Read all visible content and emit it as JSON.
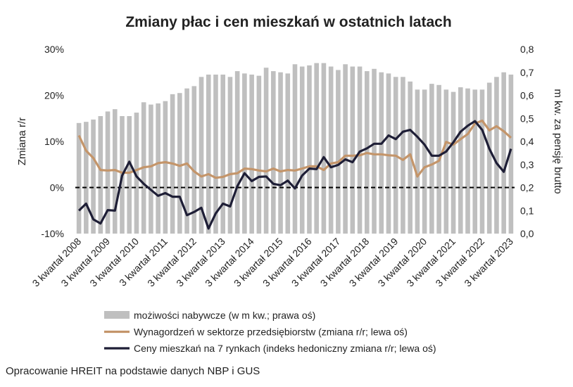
{
  "chart_data": {
    "type": "bar_line",
    "title": "Zmiany płac i cen mieszkań w ostatnich latach",
    "y_label": "Zmiana r/r",
    "y2_label": "m kw. za pensję brutto",
    "source": "Opracowanie HREIT na podstawie danych NBP i GUS",
    "categories": [
      "3 kwartał 2008",
      null,
      null,
      null,
      "3 kwartał 2009",
      null,
      null,
      null,
      "3 kwartał 2010",
      null,
      null,
      null,
      "3 kwartał 2011",
      null,
      null,
      null,
      "3 kwartał 2012",
      null,
      null,
      null,
      "3 kwartał 2013",
      null,
      null,
      null,
      "3 kwartał 2014",
      null,
      null,
      null,
      "3 kwartał 2015",
      null,
      null,
      null,
      "3 kwartał 2016",
      null,
      null,
      null,
      "3 kwartał 2017",
      null,
      null,
      null,
      "3 kwartał 2018",
      null,
      null,
      null,
      "3 kwartał 2019",
      null,
      null,
      null,
      "3 kwartał 2020",
      null,
      null,
      null,
      "3 kwartał 2021",
      null,
      null,
      null,
      "3 kwartał 2022",
      null,
      null,
      null,
      "3 kwartał 2023"
    ],
    "ylim": [
      -10,
      30
    ],
    "yticks": [
      {
        "value": -10,
        "label": "-10%"
      },
      {
        "value": 0,
        "label": "0%"
      },
      {
        "value": 10,
        "label": "10%"
      },
      {
        "value": 20,
        "label": "20%"
      },
      {
        "value": 30,
        "label": "30%"
      }
    ],
    "y2lim": [
      0,
      0.8
    ],
    "y2ticks": [
      {
        "value": 0,
        "label": "0,0"
      },
      {
        "value": 0.1,
        "label": "0,1"
      },
      {
        "value": 0.2,
        "label": "0,2"
      },
      {
        "value": 0.3,
        "label": "0,3"
      },
      {
        "value": 0.4,
        "label": "0,4"
      },
      {
        "value": 0.5,
        "label": "0,5"
      },
      {
        "value": 0.6,
        "label": "0,6"
      },
      {
        "value": 0.7,
        "label": "0,7"
      },
      {
        "value": 0.8,
        "label": "0,8"
      }
    ],
    "series": [
      {
        "name": "możiwości nabywcze (w m kw.; prawa oś)",
        "kind": "bar",
        "axis": "y2",
        "color": "#bfbfbf",
        "values": [
          0.48,
          0.485,
          0.495,
          0.51,
          0.53,
          0.54,
          0.51,
          0.51,
          0.525,
          0.57,
          0.56,
          0.565,
          0.575,
          0.605,
          0.61,
          0.63,
          0.64,
          0.68,
          0.69,
          0.69,
          0.69,
          0.68,
          0.705,
          0.695,
          0.69,
          0.685,
          0.72,
          0.705,
          0.7,
          0.695,
          0.735,
          0.725,
          0.73,
          0.74,
          0.74,
          0.725,
          0.71,
          0.735,
          0.725,
          0.725,
          0.705,
          0.715,
          0.7,
          0.695,
          0.68,
          0.68,
          0.66,
          0.625,
          0.625,
          0.65,
          0.645,
          0.625,
          0.615,
          0.635,
          0.63,
          0.625,
          0.625,
          0.655,
          0.68,
          0.7,
          0.69
        ]
      },
      {
        "name": "Wynagordzeń w sektorze przedsiębiorstw (zmiana r/r; lewa oś)",
        "kind": "line",
        "color": "#c4956a",
        "values": [
          11.3,
          8,
          6.4,
          3.8,
          3.7,
          3.8,
          3.2,
          3.2,
          3.8,
          4.4,
          4.6,
          5.3,
          5.5,
          5.2,
          4.7,
          5.2,
          3.5,
          2.4,
          2.9,
          2.1,
          2.3,
          2.9,
          3.1,
          4.1,
          4.0,
          3.7,
          3.5,
          4.1,
          3.5,
          3.8,
          3.7,
          4.1,
          4.6,
          4.6,
          3.8,
          5.2,
          5.5,
          6.9,
          6.9,
          7.0,
          7.5,
          7.2,
          7.2,
          7.0,
          6.9,
          6.0,
          7.2,
          2.4,
          4.4,
          5.0,
          5.8,
          9.9,
          9.3,
          10.5,
          11.6,
          13.9,
          14.5,
          12.4,
          13.3,
          12.2,
          10.8
        ]
      },
      {
        "name": "Ceny mieszkań na 7 rynkach (indeks hedoniczny zmiana r/r; lewa oś)",
        "kind": "line",
        "color": "#1e1e36",
        "values": [
          -5.0,
          -3.5,
          -6.9,
          -7.8,
          -4.9,
          -5.0,
          2.6,
          5.6,
          2.4,
          0.8,
          -0.5,
          -1.8,
          -1.2,
          -2.0,
          -2.0,
          -6.0,
          -5.3,
          -4.4,
          -8.9,
          -5.6,
          -3.5,
          -4.1,
          0.3,
          3.1,
          1.4,
          2.3,
          2.4,
          0.8,
          0.5,
          1.5,
          -0.2,
          2.6,
          4.1,
          4.0,
          6.6,
          4.4,
          4.9,
          6.1,
          5.5,
          7.8,
          8.5,
          9.5,
          9.5,
          11.3,
          10.5,
          12.1,
          12.5,
          11.0,
          9.3,
          6.9,
          6.9,
          7.8,
          9.8,
          12.1,
          13.4,
          14.4,
          12.5,
          8.4,
          5.3,
          3.4,
          8.4
        ]
      }
    ]
  }
}
